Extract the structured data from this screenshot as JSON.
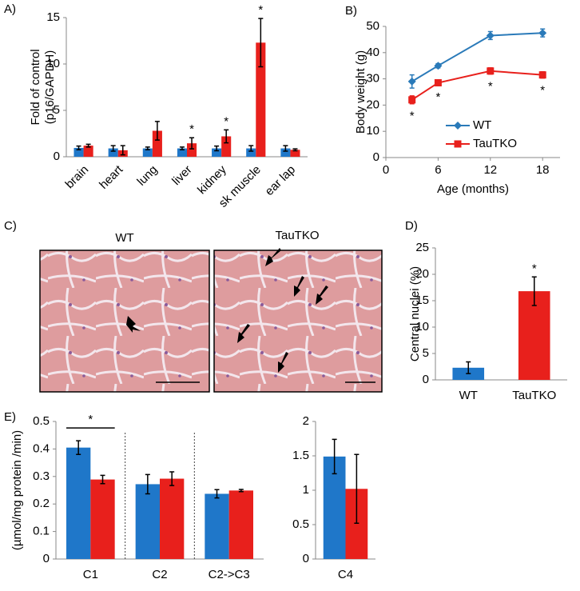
{
  "chart_data": [
    {
      "type": "bar",
      "label": "A)",
      "ylabel": [
        "Fold of control",
        "(p16/GAPDH)"
      ],
      "categories": [
        "brain",
        "heart",
        "lung",
        "liver",
        "kidney",
        "sk muscle",
        "ear lap"
      ],
      "series": [
        {
          "color": "#1f77c9",
          "values": [
            0.95,
            0.9,
            0.9,
            0.9,
            0.9,
            0.9,
            0.9
          ],
          "errors": [
            0.2,
            0.3,
            0.15,
            0.15,
            0.25,
            0.3,
            0.3
          ]
        },
        {
          "color": "#e8201c",
          "values": [
            1.2,
            0.7,
            2.8,
            1.45,
            2.2,
            12.3,
            0.75
          ],
          "errors": [
            0.15,
            0.5,
            1.0,
            0.6,
            0.7,
            2.6,
            0.1
          ],
          "annotations": [
            null,
            null,
            null,
            "*",
            "*",
            "*",
            null
          ]
        }
      ],
      "ylim": [
        0,
        15
      ],
      "yticks": [
        0,
        5,
        10,
        15
      ],
      "rotate_labels": true
    },
    {
      "type": "line",
      "label": "B)",
      "xlabel": "Age (months)",
      "ylabel": "Body weight  (g)",
      "x": [
        3,
        6,
        12,
        18
      ],
      "series": [
        {
          "name": "WT",
          "color": "#2a7ab9",
          "marker": "diamond",
          "values": [
            29,
            35,
            46.5,
            47.5
          ],
          "errors": [
            2.5,
            0.8,
            1.5,
            1.5
          ]
        },
        {
          "name": "TauTKO",
          "color": "#e8201c",
          "marker": "square",
          "values": [
            22,
            28.5,
            33,
            31.5
          ],
          "errors": [
            1.5,
            0.8,
            1.2,
            1.2
          ],
          "annotations": [
            "*",
            "*",
            "*",
            "*"
          ]
        }
      ],
      "xlim": [
        0,
        20
      ],
      "xticks": [
        0,
        6,
        12,
        18
      ],
      "ylim": [
        0,
        50
      ],
      "yticks": [
        0,
        10,
        20,
        30,
        40,
        50
      ],
      "legend": "lower right"
    },
    {
      "type": "bar",
      "label": "D)",
      "ylabel": [
        "Central nuclei (%)"
      ],
      "categories": [
        "WT",
        "TauTKO"
      ],
      "series": [
        {
          "colors": [
            "#1f77c9",
            "#e8201c"
          ],
          "values": [
            2.3,
            16.8
          ],
          "errors": [
            1.1,
            2.7
          ],
          "annotations": [
            null,
            "*"
          ]
        }
      ],
      "ylim": [
        0,
        25
      ],
      "yticks": [
        0,
        5,
        10,
        15,
        20,
        25
      ]
    },
    {
      "type": "bar",
      "label": "E)",
      "ylabel": [
        "(µmol/mg protein /min)"
      ],
      "categories": [
        "C1",
        "C2",
        "C2->C3"
      ],
      "series": [
        {
          "color": "#1f77c9",
          "values": [
            0.405,
            0.272,
            0.237
          ],
          "errors": [
            0.025,
            0.035,
            0.015
          ]
        },
        {
          "color": "#e8201c",
          "values": [
            0.289,
            0.292,
            0.249
          ],
          "errors": [
            0.015,
            0.025,
            0.004
          ]
        }
      ],
      "group_annotations": [
        "*",
        null,
        null
      ],
      "separators": true,
      "ylim": [
        0,
        0.5
      ],
      "yticks": [
        0,
        0.1,
        0.2,
        0.3,
        0.4,
        0.5
      ]
    },
    {
      "type": "bar",
      "categories": [
        "C4"
      ],
      "series": [
        {
          "color": "#1f77c9",
          "values": [
            1.49
          ],
          "errors": [
            0.25
          ]
        },
        {
          "color": "#e8201c",
          "values": [
            1.02
          ],
          "errors": [
            0.5
          ]
        }
      ],
      "ylim": [
        0,
        2
      ],
      "yticks": [
        0,
        0.5,
        1,
        1.5,
        2
      ]
    }
  ],
  "image_panel": {
    "label": "C)",
    "titles": [
      "WT",
      "TauTKO"
    ]
  }
}
